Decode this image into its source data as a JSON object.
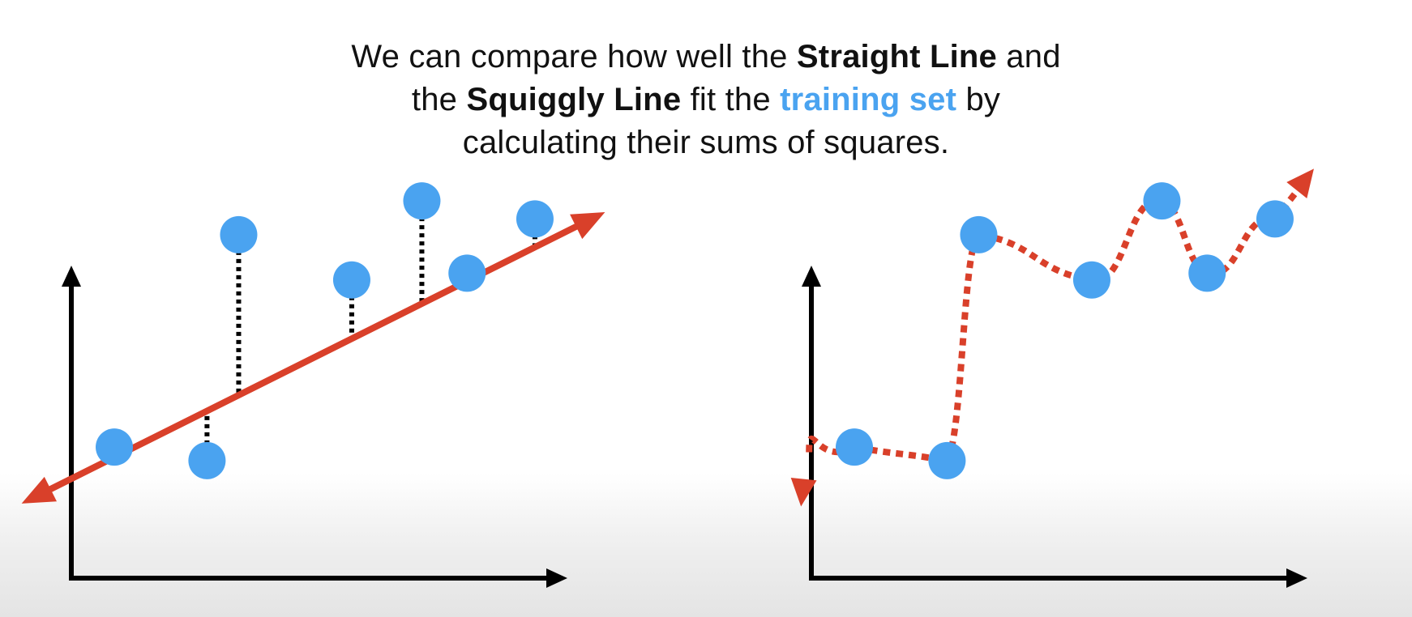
{
  "caption": {
    "l1_a": "We can compare how well the ",
    "l1_b": "Straight Line",
    "l1_c": " and",
    "l2_a": "the ",
    "l2_b": "Squiggly Line",
    "l2_c": " fit the ",
    "l2_d": "training set",
    "l2_e": " by",
    "l3": "calculating their sums of squares."
  },
  "colors": {
    "point": "#4aa3f0",
    "fit_line": "#d9402a",
    "axis": "#000000",
    "residual": "#000000",
    "highlight_text": "#4aa3f0"
  },
  "training_points": [
    {
      "x": 0.95,
      "y": 2.9
    },
    {
      "x": 3.0,
      "y": 2.6
    },
    {
      "x": 3.7,
      "y": 7.6
    },
    {
      "x": 6.2,
      "y": 6.6
    },
    {
      "x": 7.75,
      "y": 8.35
    },
    {
      "x": 8.75,
      "y": 6.75
    },
    {
      "x": 10.25,
      "y": 7.95
    }
  ],
  "straight_line": {
    "slope": 0.5,
    "intercept": 2.2
  },
  "panels": [
    {
      "name": "straight-line-panel",
      "fit": "straight",
      "residuals": true
    },
    {
      "name": "squiggly-line-panel",
      "fit": "squiggly",
      "residuals": false
    }
  ]
}
